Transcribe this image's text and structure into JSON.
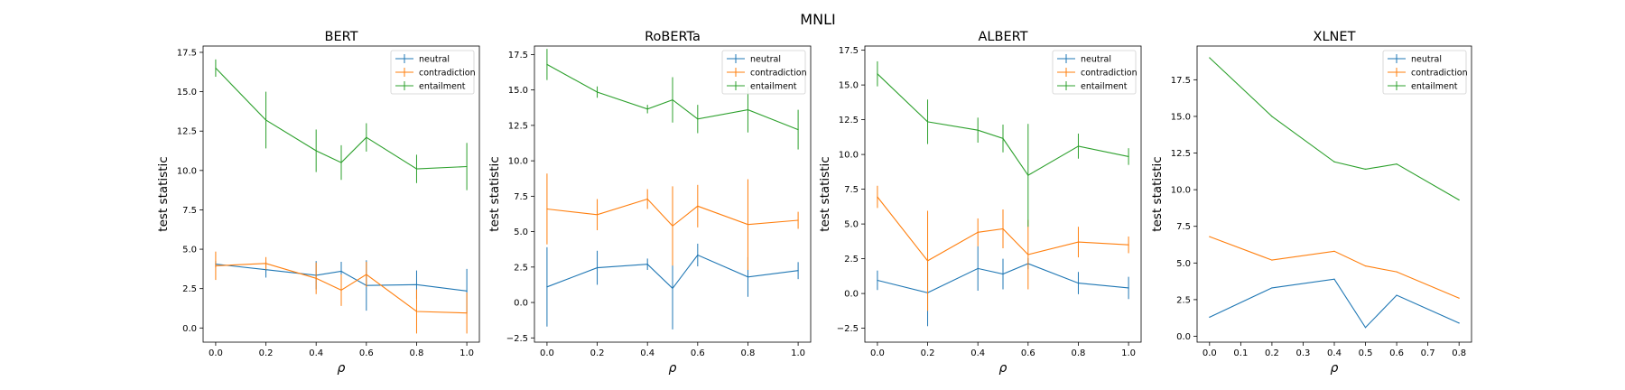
{
  "figure": {
    "title": "MNLI"
  },
  "chart_data": [
    {
      "type": "line",
      "title": "BERT",
      "xlabel": "ρ",
      "ylabel": "test statistic",
      "xlim": [
        -0.05,
        1.05
      ],
      "ylim": [
        -0.9,
        17.9
      ],
      "xticks": [
        0.0,
        0.2,
        0.4,
        0.6,
        0.8,
        1.0
      ],
      "xtick_labels": [
        "0.0",
        "0.2",
        "0.4",
        "0.6",
        "0.8",
        "1.0"
      ],
      "yticks": [
        0.0,
        2.5,
        5.0,
        7.5,
        10.0,
        12.5,
        15.0,
        17.5
      ],
      "ytick_labels": [
        "0.0",
        "2.5",
        "5.0",
        "7.5",
        "10.0",
        "12.5",
        "15.0",
        "17.5"
      ],
      "legend_position": "top-right",
      "x": [
        0.0,
        0.2,
        0.4,
        0.5,
        0.6,
        0.8,
        1.0
      ],
      "series": [
        {
          "name": "neutral",
          "color": "#1f77b4",
          "values": [
            4.05,
            3.7,
            3.35,
            3.6,
            2.7,
            2.75,
            2.35
          ],
          "error": [
            0.2,
            0.5,
            0.9,
            0.6,
            1.6,
            0.9,
            1.4
          ]
        },
        {
          "name": "contradiction",
          "color": "#ff7f0e",
          "values": [
            3.95,
            4.1,
            3.15,
            2.4,
            3.4,
            1.05,
            0.95
          ],
          "error": [
            0.9,
            0.4,
            1.0,
            1.0,
            0.8,
            1.4,
            1.3
          ]
        },
        {
          "name": "entailment",
          "color": "#2ca02c",
          "values": [
            16.5,
            13.2,
            11.25,
            10.5,
            12.1,
            10.1,
            10.25
          ],
          "error": [
            0.55,
            1.8,
            1.35,
            1.1,
            0.9,
            0.9,
            1.5
          ]
        }
      ]
    },
    {
      "type": "line",
      "title": "RoBERTa",
      "xlabel": "ρ",
      "ylabel": "test statistic",
      "xlim": [
        -0.05,
        1.05
      ],
      "ylim": [
        -2.8,
        18.1
      ],
      "xticks": [
        0.0,
        0.2,
        0.4,
        0.6,
        0.8,
        1.0
      ],
      "xtick_labels": [
        "0.0",
        "0.2",
        "0.4",
        "0.6",
        "0.8",
        "1.0"
      ],
      "yticks": [
        -2.5,
        0.0,
        2.5,
        5.0,
        7.5,
        10.0,
        12.5,
        15.0,
        17.5
      ],
      "ytick_labels": [
        "−2.5",
        "0.0",
        "2.5",
        "5.0",
        "7.5",
        "10.0",
        "12.5",
        "15.0",
        "17.5"
      ],
      "legend_position": "top-right",
      "x": [
        0.0,
        0.2,
        0.4,
        0.5,
        0.6,
        0.8,
        1.0
      ],
      "series": [
        {
          "name": "neutral",
          "color": "#1f77b4",
          "values": [
            1.1,
            2.45,
            2.7,
            1.0,
            3.35,
            1.8,
            2.25
          ],
          "error": [
            2.8,
            1.2,
            0.4,
            2.9,
            0.8,
            1.4,
            0.6
          ]
        },
        {
          "name": "contradiction",
          "color": "#ff7f0e",
          "values": [
            6.6,
            6.2,
            7.3,
            5.4,
            6.8,
            5.5,
            5.8
          ],
          "error": [
            2.5,
            1.1,
            0.7,
            2.8,
            1.5,
            3.2,
            0.6
          ]
        },
        {
          "name": "entailment",
          "color": "#2ca02c",
          "values": [
            16.8,
            14.85,
            13.65,
            14.3,
            12.95,
            13.6,
            12.2
          ],
          "error": [
            1.1,
            0.4,
            0.3,
            1.6,
            1.0,
            1.6,
            1.4
          ]
        }
      ]
    },
    {
      "type": "line",
      "title": "ALBERT",
      "xlabel": "ρ",
      "ylabel": "test statistic",
      "xlim": [
        -0.05,
        1.05
      ],
      "ylim": [
        -3.5,
        17.8
      ],
      "xticks": [
        0.0,
        0.2,
        0.4,
        0.6,
        0.8,
        1.0
      ],
      "xtick_labels": [
        "0.0",
        "0.2",
        "0.4",
        "0.6",
        "0.8",
        "1.0"
      ],
      "yticks": [
        -2.5,
        0.0,
        2.5,
        5.0,
        7.5,
        10.0,
        12.5,
        15.0,
        17.5
      ],
      "ytick_labels": [
        "−2.5",
        "0.0",
        "2.5",
        "5.0",
        "7.5",
        "10.0",
        "12.5",
        "15.0",
        "17.5"
      ],
      "legend_position": "top-right",
      "x": [
        0.0,
        0.2,
        0.4,
        0.5,
        0.6,
        0.8,
        1.0
      ],
      "series": [
        {
          "name": "neutral",
          "color": "#1f77b4",
          "values": [
            0.95,
            0.05,
            1.8,
            1.4,
            2.15,
            0.75,
            0.4
          ],
          "error": [
            0.7,
            2.4,
            1.6,
            1.1,
            0.4,
            0.8,
            0.8
          ]
        },
        {
          "name": "contradiction",
          "color": "#ff7f0e",
          "values": [
            6.95,
            2.35,
            4.4,
            4.65,
            2.8,
            3.7,
            3.5
          ],
          "error": [
            0.8,
            3.6,
            1.0,
            1.4,
            2.5,
            1.1,
            0.6
          ]
        },
        {
          "name": "entailment",
          "color": "#2ca02c",
          "values": [
            15.8,
            12.35,
            11.75,
            11.15,
            8.5,
            10.6,
            9.85
          ],
          "error": [
            0.9,
            1.6,
            0.9,
            1.0,
            3.7,
            0.9,
            0.6
          ]
        }
      ]
    },
    {
      "type": "line",
      "title": "XLNET",
      "xlabel": "ρ",
      "ylabel": "test statistic",
      "xlim": [
        -0.04,
        0.84
      ],
      "ylim": [
        -0.4,
        19.8
      ],
      "xticks": [
        0.0,
        0.1,
        0.2,
        0.3,
        0.4,
        0.5,
        0.6,
        0.7,
        0.8
      ],
      "xtick_labels": [
        "0.0",
        "0.1",
        "0.2",
        "0.3",
        "0.4",
        "0.5",
        "0.6",
        "0.7",
        "0.8"
      ],
      "yticks": [
        0.0,
        2.5,
        5.0,
        7.5,
        10.0,
        12.5,
        15.0,
        17.5
      ],
      "ytick_labels": [
        "0.0",
        "2.5",
        "5.0",
        "7.5",
        "10.0",
        "12.5",
        "15.0",
        "17.5"
      ],
      "legend_position": "top-right",
      "x": [
        0.0,
        0.2,
        0.4,
        0.5,
        0.6,
        0.8
      ],
      "series": [
        {
          "name": "neutral",
          "color": "#1f77b4",
          "values": [
            1.3,
            3.3,
            3.9,
            0.6,
            2.8,
            0.9
          ],
          "error": [
            0,
            0,
            0,
            0,
            0,
            0
          ]
        },
        {
          "name": "contradiction",
          "color": "#ff7f0e",
          "values": [
            6.8,
            5.2,
            5.8,
            4.8,
            4.4,
            2.6
          ],
          "error": [
            0,
            0,
            0,
            0,
            0,
            0
          ]
        },
        {
          "name": "entailment",
          "color": "#2ca02c",
          "values": [
            19.0,
            15.0,
            11.9,
            11.4,
            11.75,
            9.3
          ],
          "error": [
            0,
            0,
            0,
            0,
            0,
            0
          ]
        }
      ]
    }
  ]
}
